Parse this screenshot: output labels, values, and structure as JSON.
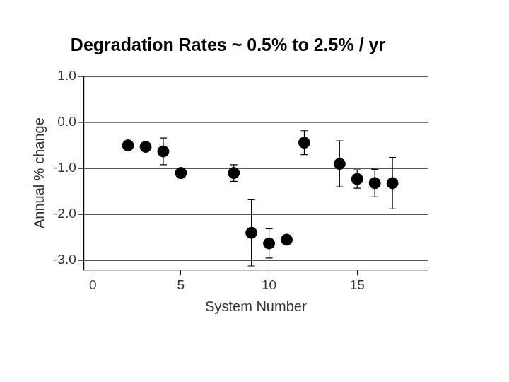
{
  "chart_data": {
    "type": "scatter",
    "title": "Degradation Rates ~ 0.5% to 2.5% / yr",
    "x_label": "System Number",
    "y_label": "Annual % change",
    "x": [
      2,
      3,
      4,
      5,
      8,
      9,
      10,
      11,
      12,
      14,
      15,
      16,
      17
    ],
    "values": [
      -0.5,
      -0.53,
      -0.63,
      -1.1,
      -1.1,
      -2.4,
      -2.63,
      -2.55,
      -0.44,
      -0.9,
      -1.23,
      -1.32,
      -1.32
    ],
    "errors": [
      null,
      null,
      0.29,
      null,
      0.18,
      0.72,
      0.32,
      null,
      0.26,
      0.5,
      0.2,
      0.3,
      0.56
    ],
    "color": "#000000",
    "marker": "circle",
    "xlim": [
      -0.5,
      19
    ],
    "xticks": [
      0,
      5,
      10,
      15
    ],
    "ylim": [
      -3.2,
      1.0
    ],
    "yticks": [
      {
        "value": 1,
        "label": "1.0"
      },
      {
        "value": 0,
        "label": "0.0"
      },
      {
        "value": -1,
        "label": "-1.0"
      },
      {
        "value": -2,
        "label": "-2.0"
      },
      {
        "value": -3,
        "label": "-3.0"
      }
    ],
    "grid": true
  }
}
